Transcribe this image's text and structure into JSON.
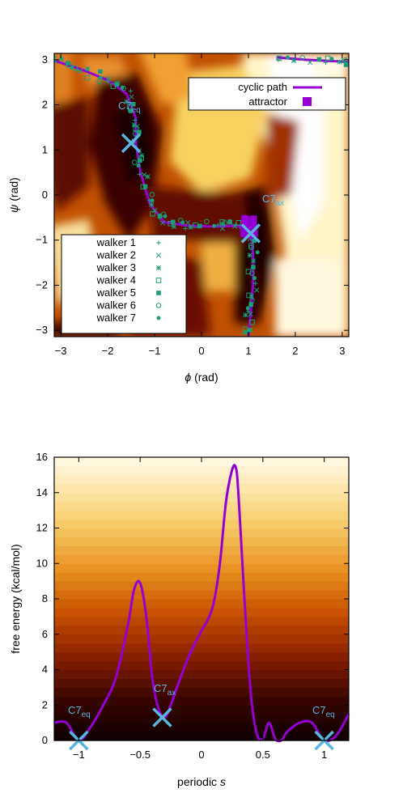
{
  "chart_data": [
    {
      "type": "heatmap",
      "xlabel_symbol": "ϕ",
      "xlabel_unit": "(rad)",
      "ylabel_symbol": "ψ",
      "ylabel_unit": "(rad)",
      "xlim": [
        -3.14,
        3.14
      ],
      "ylim": [
        -3.14,
        3.14
      ],
      "x_ticks": [
        "−3",
        "−2",
        "−1",
        "0",
        "1",
        "2",
        "3"
      ],
      "y_ticks": [
        "3",
        "2",
        "1",
        "0",
        "−1",
        "−2",
        "−3"
      ],
      "colormap": [
        "#1a0000",
        "#5a0a00",
        "#a03000",
        "#e07010",
        "#f8c040",
        "#fff8d0"
      ],
      "cyclic_path": {
        "name": "cyclic path",
        "color": "#9400d3",
        "x": [
          -3.14,
          -2.6,
          -2.0,
          -1.6,
          -1.4,
          -1.4,
          -1.3,
          -1.1,
          -0.8,
          -0.3,
          0.3,
          0.7,
          0.95,
          1.05,
          1.1,
          1.1,
          1.05,
          1.0
        ],
        "y": [
          2.98,
          2.8,
          2.55,
          2.25,
          1.7,
          1.15,
          0.5,
          -0.2,
          -0.6,
          -0.68,
          -0.7,
          -0.68,
          -0.72,
          -0.85,
          -1.3,
          -2.0,
          -2.6,
          -3.14
        ]
      },
      "path_tail": {
        "x": [
          1.6,
          2.2,
          2.8,
          3.14
        ],
        "y": [
          3.05,
          3.0,
          2.97,
          2.95
        ]
      },
      "attractor": {
        "name": "attractor",
        "x": 1.05,
        "y": -0.75,
        "color": "#9400d3"
      },
      "legend_top": [
        "cyclic path",
        "attractor"
      ],
      "walkers": [
        "walker 1",
        "walker 2",
        "walker 3",
        "walker 4",
        "walker 5",
        "walker 6",
        "walker 7"
      ],
      "walker_color": "#1a9e77",
      "states": [
        {
          "name": "C7",
          "sub": "eq",
          "x": -1.5,
          "y": 1.15,
          "color": "#5ab4e0"
        },
        {
          "name": "C7",
          "sub": "ax",
          "x": 1.05,
          "y": -0.85,
          "color": "#5ab4e0"
        }
      ]
    },
    {
      "type": "line",
      "xlabel": "periodic",
      "xlabel_symbol": "s",
      "ylabel": "free energy (kcal/mol)",
      "xlim": [
        -1.2,
        1.2
      ],
      "ylim": [
        0,
        16
      ],
      "x_ticks": [
        -1,
        -0.5,
        0,
        0.5,
        1
      ],
      "x_tick_labels": [
        "−1",
        "−0.5",
        "0",
        "0.5",
        "1"
      ],
      "y_ticks": [
        0,
        2,
        4,
        6,
        8,
        10,
        12,
        14,
        16
      ],
      "line_color": "#9400d3",
      "x": [
        -1.2,
        -1.1,
        -1.0,
        -0.9,
        -0.8,
        -0.7,
        -0.6,
        -0.55,
        -0.5,
        -0.45,
        -0.4,
        -0.35,
        -0.3,
        -0.25,
        -0.2,
        -0.1,
        0.0,
        0.05,
        0.1,
        0.15,
        0.2,
        0.25,
        0.28,
        0.3,
        0.35,
        0.4,
        0.45,
        0.5,
        0.55,
        0.6,
        0.65,
        0.7,
        0.8,
        0.9,
        1.0,
        1.1,
        1.2
      ],
      "y": [
        1.0,
        1.0,
        0.0,
        0.8,
        2.0,
        3.5,
        6.5,
        8.5,
        8.9,
        7.0,
        3.5,
        1.8,
        1.3,
        2.0,
        3.0,
        4.8,
        6.2,
        6.8,
        7.8,
        10.0,
        13.5,
        15.3,
        15.4,
        14.0,
        8.0,
        2.8,
        0.4,
        0.1,
        1.0,
        0.1,
        0.0,
        0.5,
        1.0,
        1.0,
        0.0,
        0.3,
        1.5
      ],
      "states": [
        {
          "name": "C7",
          "sub": "eq",
          "x": -1.0,
          "y": 0.0,
          "color": "#5ab4e0"
        },
        {
          "name": "C7",
          "sub": "ax",
          "x": -0.32,
          "y": 1.3,
          "color": "#5ab4e0"
        },
        {
          "name": "C7",
          "sub": "eq",
          "x": 1.0,
          "y": 0.0,
          "color": "#5ab4e0"
        }
      ]
    }
  ]
}
